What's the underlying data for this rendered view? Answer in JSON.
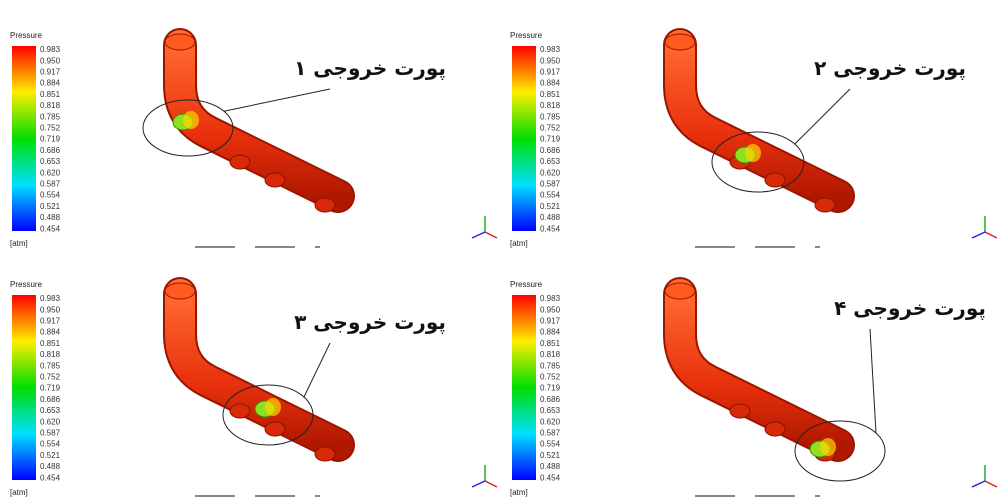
{
  "legend": {
    "title": "Pressure",
    "ticks": [
      "0.983",
      "0.950",
      "0.917",
      "0.884",
      "0.851",
      "0.818",
      "0.785",
      "0.752",
      "0.719",
      "0.686",
      "0.653",
      "0.620",
      "0.587",
      "0.554",
      "0.521",
      "0.488",
      "0.454"
    ],
    "unit": "[atm]"
  },
  "panels": [
    {
      "label": "پورت خروجی ۱"
    },
    {
      "label": "پورت خروجی ۲"
    },
    {
      "label": "پورت خروجی ۳"
    },
    {
      "label": "پورت خروجی ۴"
    }
  ]
}
